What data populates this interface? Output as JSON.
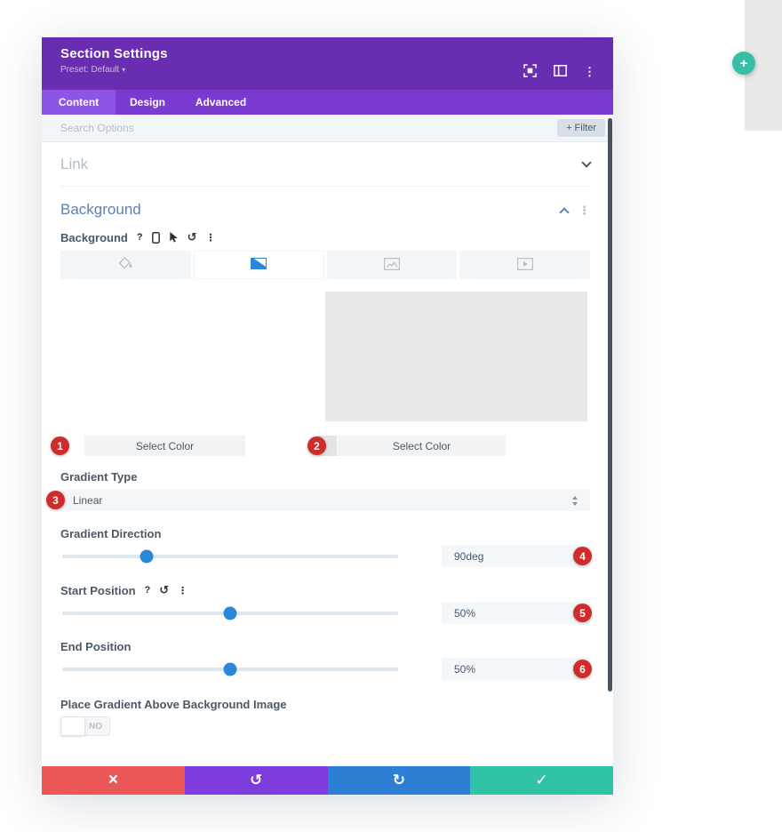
{
  "modal": {
    "header": {
      "title": "Section Settings",
      "preset_label": "Preset: Default"
    },
    "tabs": [
      {
        "label": "Content"
      },
      {
        "label": "Design"
      },
      {
        "label": "Advanced"
      }
    ],
    "active_tab": "Content",
    "search": {
      "placeholder": "Search Options",
      "filter_label": "+ Filter"
    },
    "link_section": {
      "title": "Link"
    },
    "background_section": {
      "title": "Background",
      "field_label": "Background",
      "type_options": [
        "color",
        "gradient",
        "image",
        "video"
      ],
      "active_type": "gradient",
      "color_stops": [
        {
          "button_label": "Select Color",
          "badge": "1"
        },
        {
          "button_label": "Select Color",
          "badge": "2"
        }
      ],
      "controls": {
        "gradient_type": {
          "label": "Gradient Type",
          "value": "Linear",
          "badge": "3"
        },
        "gradient_direction": {
          "label": "Gradient Direction",
          "value": "90deg",
          "badge": "4",
          "slider_percent": 25
        },
        "start_position": {
          "label": "Start Position",
          "value": "50%",
          "badge": "5",
          "slider_percent": 50
        },
        "end_position": {
          "label": "End Position",
          "value": "50%",
          "badge": "6",
          "slider_percent": 50
        },
        "place_gradient": {
          "label": "Place Gradient Above Background Image",
          "toggle_value": "NO"
        }
      }
    }
  },
  "glyphs": {
    "kebab": "⋮",
    "help": "?",
    "undo": "↺",
    "redo": "↻",
    "close": "×",
    "check": "✓",
    "plus": "+",
    "caret_down": "▾"
  },
  "colors": {
    "header_purple": "#692db2",
    "tabbar_purple": "#7b3ad2",
    "active_tab_purple": "#8d55e6",
    "accent_blue": "#2b87da",
    "section_title_blue": "#5e7fb0",
    "badge_red": "#cf2c2c",
    "footer_red": "#eb5757",
    "footer_purple": "#7f3cdc",
    "footer_blue": "#2d7fd6",
    "footer_green": "#30c3a6",
    "fab_green": "#35c0a5"
  }
}
